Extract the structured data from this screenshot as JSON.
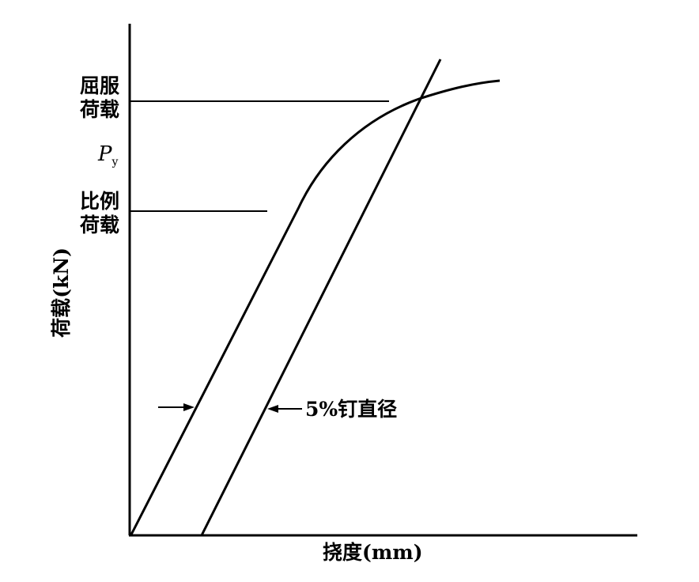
{
  "diagram": {
    "y_axis_label": "荷载(kN)",
    "x_axis_label": "挠度(mm)",
    "yield_load_label_line1": "屈服",
    "yield_load_label_line2": "荷载",
    "py_symbol": "P",
    "py_subscript": "y",
    "proportional_load_label_line1": "比例",
    "proportional_load_label_line2": "荷载",
    "offset_label": "5%钉直径",
    "line_color": "#000000"
  }
}
